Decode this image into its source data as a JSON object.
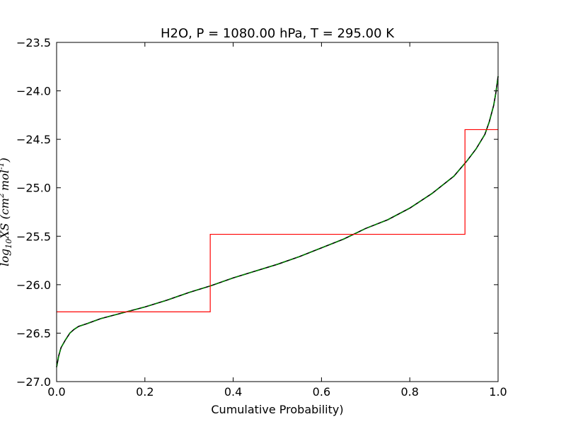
{
  "chart_data": {
    "type": "line",
    "title": "H2O, P = 1080.00 hPa, T = 295.00 K",
    "xlabel": "Cumulative Probability)",
    "ylabel": "log10XS (cm2 mol-1)",
    "ylabel_parts": {
      "base": "log",
      "sub": "10",
      "mid": "XS (cm",
      "sup1": "2",
      "mid2": "mol",
      "sup2": "-1",
      "end": ")"
    },
    "xlim": [
      0.0,
      1.0
    ],
    "ylim": [
      -27.0,
      -23.5
    ],
    "xticks": [
      0.0,
      0.2,
      0.4,
      0.6,
      0.8,
      1.0
    ],
    "xtick_labels": [
      "0.0",
      "0.2",
      "0.4",
      "0.6",
      "0.8",
      "1.0"
    ],
    "yticks": [
      -27.0,
      -26.5,
      -26.0,
      -25.5,
      -25.0,
      -24.5,
      -24.0,
      -23.5
    ],
    "ytick_labels": [
      "−27.0",
      "−26.5",
      "−26.0",
      "−25.5",
      "−25.0",
      "−24.5",
      "−24.0",
      "−23.5"
    ],
    "grid": false,
    "series": [
      {
        "color": "#000000",
        "style": "solid",
        "x": [
          0.0,
          0.005,
          0.01,
          0.02,
          0.03,
          0.04,
          0.05,
          0.07,
          0.1,
          0.15,
          0.2,
          0.25,
          0.3,
          0.35,
          0.4,
          0.45,
          0.5,
          0.55,
          0.6,
          0.65,
          0.7,
          0.75,
          0.8,
          0.85,
          0.9,
          0.93,
          0.95,
          0.97,
          0.98,
          0.99,
          0.995,
          1.0
        ],
        "y": [
          -26.85,
          -26.73,
          -26.65,
          -26.57,
          -26.5,
          -26.46,
          -26.43,
          -26.4,
          -26.35,
          -26.29,
          -26.23,
          -26.16,
          -26.08,
          -26.01,
          -25.93,
          -25.86,
          -25.79,
          -25.71,
          -25.62,
          -25.53,
          -25.42,
          -25.33,
          -25.21,
          -25.06,
          -24.88,
          -24.72,
          -24.6,
          -24.45,
          -24.32,
          -24.15,
          -24.02,
          -23.85
        ]
      },
      {
        "color": "#008000",
        "style": "dashed",
        "x": [
          0.0,
          0.005,
          0.01,
          0.02,
          0.03,
          0.04,
          0.05,
          0.07,
          0.1,
          0.15,
          0.2,
          0.25,
          0.3,
          0.35,
          0.4,
          0.45,
          0.5,
          0.55,
          0.6,
          0.65,
          0.7,
          0.75,
          0.8,
          0.85,
          0.9,
          0.93,
          0.95,
          0.97,
          0.98,
          0.99,
          0.995,
          1.0
        ],
        "y": [
          -26.85,
          -26.73,
          -26.65,
          -26.57,
          -26.5,
          -26.46,
          -26.43,
          -26.4,
          -26.35,
          -26.29,
          -26.23,
          -26.16,
          -26.08,
          -26.01,
          -25.93,
          -25.86,
          -25.79,
          -25.71,
          -25.62,
          -25.53,
          -25.42,
          -25.33,
          -25.21,
          -25.06,
          -24.88,
          -24.72,
          -24.6,
          -24.45,
          -24.32,
          -24.15,
          -24.02,
          -23.85
        ]
      },
      {
        "color": "#ff0000",
        "style": "steps",
        "x": [
          0.0,
          0.348,
          0.348,
          0.925,
          0.925,
          1.0
        ],
        "y": [
          -26.28,
          -26.28,
          -25.48,
          -25.48,
          -24.4,
          -24.4
        ]
      }
    ]
  }
}
